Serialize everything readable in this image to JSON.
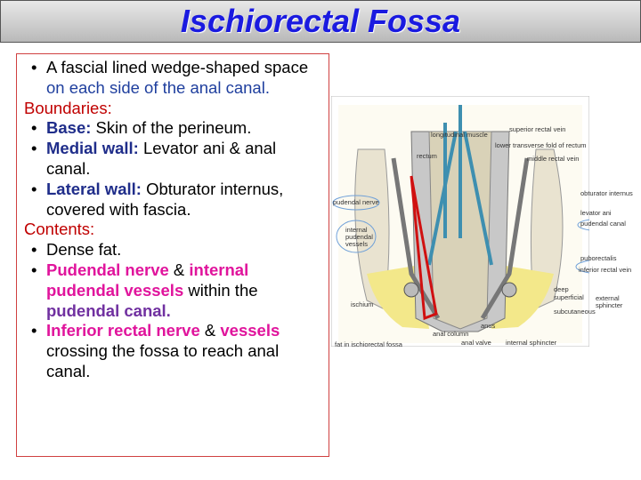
{
  "title": "Ischiorectal Fossa",
  "text_blocks": [
    {
      "kind": "bullet",
      "segments": [
        {
          "text": "A fascial lined wedge-shaped space ",
          "color": "#000000",
          "bold": false
        },
        {
          "text": "on each side of the anal canal.",
          "color": "#1f3f9e",
          "bold": false
        }
      ]
    },
    {
      "kind": "heading",
      "segments": [
        {
          "text": "Boundaries:",
          "color": "#c00000",
          "bold": false
        }
      ]
    },
    {
      "kind": "bullet",
      "segments": [
        {
          "text": "Base:",
          "color": "#1f2d8a",
          "bold": true
        },
        {
          "text": " Skin of the perineum.",
          "color": "#000000",
          "bold": false
        }
      ]
    },
    {
      "kind": "bullet",
      "segments": [
        {
          "text": "Medial wall:",
          "color": "#1f2d8a",
          "bold": true
        },
        {
          "text": " Levator ani & anal canal.",
          "color": "#000000",
          "bold": false
        }
      ]
    },
    {
      "kind": "bullet",
      "segments": [
        {
          "text": "Lateral wall:",
          "color": "#1f2d8a",
          "bold": true
        },
        {
          "text": " Obturator internus, covered with fascia.",
          "color": "#000000",
          "bold": false
        }
      ]
    },
    {
      "kind": "heading",
      "segments": [
        {
          "text": "Contents:",
          "color": "#c00000",
          "bold": false
        }
      ]
    },
    {
      "kind": "bullet",
      "segments": [
        {
          "text": "Dense fat.",
          "color": "#000000",
          "bold": false
        }
      ]
    },
    {
      "kind": "bullet",
      "segments": [
        {
          "text": "Pudendal nerve",
          "color": "#e0149c",
          "bold": true
        },
        {
          "text": " & ",
          "color": "#000000",
          "bold": false
        },
        {
          "text": "internal pudendal vessels",
          "color": "#e0149c",
          "bold": true
        },
        {
          "text": " within the ",
          "color": "#000000",
          "bold": false
        },
        {
          "text": "pudendal canal.",
          "color": "#7030a0",
          "bold": true
        }
      ]
    },
    {
      "kind": "bullet",
      "segments": [
        {
          "text": "Inferior rectal nerve",
          "color": "#e0149c",
          "bold": true
        },
        {
          "text": " & ",
          "color": "#000000",
          "bold": false
        },
        {
          "text": "vessels",
          "color": "#e0149c",
          "bold": true
        },
        {
          "text": " crossing the fossa to reach anal canal.",
          "color": "#000000",
          "bold": false
        }
      ]
    }
  ],
  "figure": {
    "labels": [
      "superior rectal vein",
      "lower transverse fold of rectum",
      "longitudinal muscle",
      "middle rectal vein",
      "rectum",
      "obturator internus",
      "pudendal nerve",
      "levator ani",
      "internal pudendal vessels",
      "pudendal canal",
      "puborectalis",
      "inferior rectal vein",
      "deep",
      "superficial",
      "subcutaneous",
      "external sphincter",
      "ischium",
      "anus",
      "anal column",
      "anal valve",
      "internal sphincter",
      "fat in ischiorectal fossa"
    ]
  }
}
